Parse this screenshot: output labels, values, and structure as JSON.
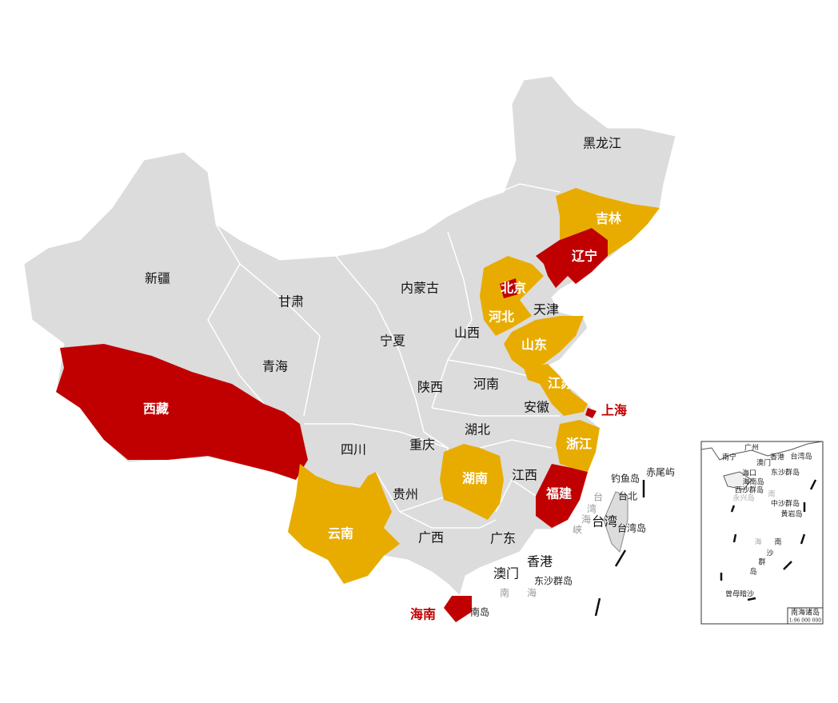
{
  "colors": {
    "base": "#dcdcdc",
    "high": "#c00000",
    "medium": "#e8ac00",
    "border": "#ffffff"
  },
  "provinces": [
    {
      "name": "黑龙江",
      "level": "none"
    },
    {
      "name": "吉林",
      "level": "medium"
    },
    {
      "name": "辽宁",
      "level": "high"
    },
    {
      "name": "内蒙古",
      "level": "none"
    },
    {
      "name": "北京",
      "level": "high"
    },
    {
      "name": "天津",
      "level": "none"
    },
    {
      "name": "河北",
      "level": "medium"
    },
    {
      "name": "山西",
      "level": "none"
    },
    {
      "name": "山东",
      "level": "medium"
    },
    {
      "name": "新疆",
      "level": "none"
    },
    {
      "name": "甘肃",
      "level": "none"
    },
    {
      "name": "宁夏",
      "level": "none"
    },
    {
      "name": "青海",
      "level": "none"
    },
    {
      "name": "西藏",
      "level": "high"
    },
    {
      "name": "陕西",
      "level": "none"
    },
    {
      "name": "河南",
      "level": "none"
    },
    {
      "name": "江苏",
      "level": "medium"
    },
    {
      "name": "安徽",
      "level": "none"
    },
    {
      "name": "上海",
      "level": "high"
    },
    {
      "name": "湖北",
      "level": "none"
    },
    {
      "name": "四川",
      "level": "none"
    },
    {
      "name": "重庆",
      "level": "none"
    },
    {
      "name": "浙江",
      "level": "medium"
    },
    {
      "name": "湖南",
      "level": "medium"
    },
    {
      "name": "江西",
      "level": "none"
    },
    {
      "name": "贵州",
      "level": "none"
    },
    {
      "name": "福建",
      "level": "high"
    },
    {
      "name": "云南",
      "level": "medium"
    },
    {
      "name": "广西",
      "level": "none"
    },
    {
      "name": "广东",
      "level": "none"
    },
    {
      "name": "台湾",
      "level": "none"
    },
    {
      "name": "香港",
      "level": "none"
    },
    {
      "name": "澳门",
      "level": "none"
    },
    {
      "name": "海南",
      "level": "high"
    }
  ],
  "annotations": [
    "钓鱼岛",
    "赤尾屿",
    "台北",
    "台湾岛",
    "东沙群岛",
    "南",
    "海",
    "南岛",
    "台",
    "湾",
    "海",
    "峡"
  ],
  "inset": {
    "title": "南海诸岛",
    "scale": "1:96 000 000",
    "labels": [
      "南宁",
      "广州",
      "香港",
      "澳门",
      "台湾岛",
      "海口",
      "东沙群岛",
      "海南岛",
      "西沙群岛",
      "永兴岛",
      "南",
      "中沙群岛",
      "黄岩岛",
      "海",
      "南",
      "沙",
      "群",
      "岛",
      "曾母暗沙"
    ]
  }
}
